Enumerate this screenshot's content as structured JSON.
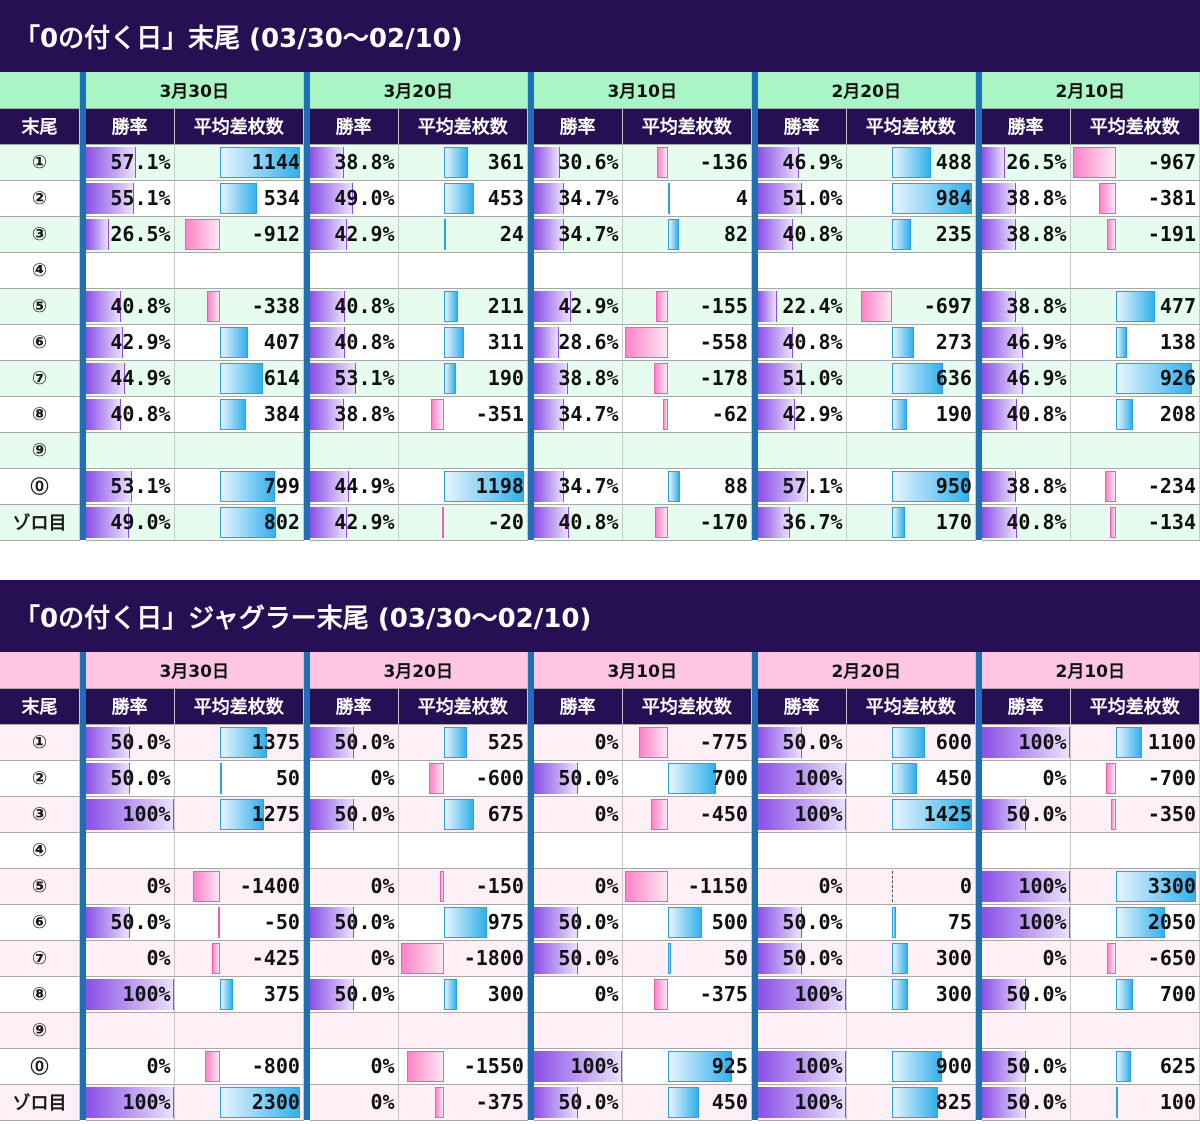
{
  "tables": [
    {
      "title": "「0の付く日」末尾 (03/30〜02/10)",
      "tail_header": "末尾",
      "rate_header": "勝率",
      "diff_header": "平均差枚数",
      "dates": [
        "3月30日",
        "3月20日",
        "3月10日",
        "2月20日",
        "2月10日"
      ],
      "rows": [
        {
          "tail": "①",
          "cells": [
            [
              "57.1%",
              1144
            ],
            [
              "38.8%",
              361
            ],
            [
              "30.6%",
              -136
            ],
            [
              "46.9%",
              488
            ],
            [
              "26.5%",
              -967
            ]
          ]
        },
        {
          "tail": "②",
          "cells": [
            [
              "55.1%",
              534
            ],
            [
              "49.0%",
              453
            ],
            [
              "34.7%",
              4
            ],
            [
              "51.0%",
              984
            ],
            [
              "38.8%",
              -381
            ]
          ]
        },
        {
          "tail": "③",
          "cells": [
            [
              "26.5%",
              -912
            ],
            [
              "42.9%",
              24
            ],
            [
              "34.7%",
              82
            ],
            [
              "40.8%",
              235
            ],
            [
              "38.8%",
              -191
            ]
          ]
        },
        {
          "tail": "④",
          "cells": [
            [
              "",
              null
            ],
            [
              "",
              null
            ],
            [
              "",
              null
            ],
            [
              "",
              null
            ],
            [
              "",
              null
            ]
          ]
        },
        {
          "tail": "⑤",
          "cells": [
            [
              "40.8%",
              -338
            ],
            [
              "40.8%",
              211
            ],
            [
              "42.9%",
              -155
            ],
            [
              "22.4%",
              -697
            ],
            [
              "38.8%",
              477
            ]
          ]
        },
        {
          "tail": "⑥",
          "cells": [
            [
              "42.9%",
              407
            ],
            [
              "40.8%",
              311
            ],
            [
              "28.6%",
              -558
            ],
            [
              "40.8%",
              273
            ],
            [
              "46.9%",
              138
            ]
          ]
        },
        {
          "tail": "⑦",
          "cells": [
            [
              "44.9%",
              614
            ],
            [
              "53.1%",
              190
            ],
            [
              "38.8%",
              -178
            ],
            [
              "51.0%",
              636
            ],
            [
              "46.9%",
              926
            ]
          ]
        },
        {
          "tail": "⑧",
          "cells": [
            [
              "40.8%",
              384
            ],
            [
              "38.8%",
              -351
            ],
            [
              "34.7%",
              -62
            ],
            [
              "42.9%",
              190
            ],
            [
              "40.8%",
              208
            ]
          ]
        },
        {
          "tail": "⑨",
          "cells": [
            [
              "",
              null
            ],
            [
              "",
              null
            ],
            [
              "",
              null
            ],
            [
              "",
              null
            ],
            [
              "",
              null
            ]
          ]
        },
        {
          "tail": "⓪",
          "cells": [
            [
              "53.1%",
              799
            ],
            [
              "44.9%",
              1198
            ],
            [
              "34.7%",
              88
            ],
            [
              "57.1%",
              950
            ],
            [
              "38.8%",
              -234
            ]
          ]
        },
        {
          "tail": "ゾロ目",
          "cells": [
            [
              "49.0%",
              802
            ],
            [
              "42.9%",
              -20
            ],
            [
              "40.8%",
              -170
            ],
            [
              "36.7%",
              170
            ],
            [
              "40.8%",
              -134
            ]
          ]
        }
      ]
    },
    {
      "title": "「0の付く日」ジャグラー末尾 (03/30〜02/10)",
      "tail_header": "末尾",
      "rate_header": "勝率",
      "diff_header": "平均差枚数",
      "dates": [
        "3月30日",
        "3月20日",
        "3月10日",
        "2月20日",
        "2月10日"
      ],
      "rows": [
        {
          "tail": "①",
          "cells": [
            [
              "50.0%",
              1375
            ],
            [
              "50.0%",
              525
            ],
            [
              "0%",
              -775
            ],
            [
              "50.0%",
              600
            ],
            [
              "100%",
              1100
            ]
          ]
        },
        {
          "tail": "②",
          "cells": [
            [
              "50.0%",
              50
            ],
            [
              "0%",
              -600
            ],
            [
              "50.0%",
              700
            ],
            [
              "100%",
              450
            ],
            [
              "0%",
              -700
            ]
          ]
        },
        {
          "tail": "③",
          "cells": [
            [
              "100%",
              1275
            ],
            [
              "50.0%",
              675
            ],
            [
              "0%",
              -450
            ],
            [
              "100%",
              1425
            ],
            [
              "50.0%",
              -350
            ]
          ]
        },
        {
          "tail": "④",
          "cells": [
            [
              "",
              null
            ],
            [
              "",
              null
            ],
            [
              "",
              null
            ],
            [
              "",
              null
            ],
            [
              "",
              null
            ]
          ]
        },
        {
          "tail": "⑤",
          "cells": [
            [
              "0%",
              -1400
            ],
            [
              "0%",
              -150
            ],
            [
              "0%",
              -1150
            ],
            [
              "0%",
              0
            ],
            [
              "100%",
              3300
            ]
          ]
        },
        {
          "tail": "⑥",
          "cells": [
            [
              "50.0%",
              -50
            ],
            [
              "50.0%",
              975
            ],
            [
              "50.0%",
              500
            ],
            [
              "50.0%",
              75
            ],
            [
              "100%",
              2050
            ]
          ]
        },
        {
          "tail": "⑦",
          "cells": [
            [
              "0%",
              -425
            ],
            [
              "0%",
              -1800
            ],
            [
              "50.0%",
              50
            ],
            [
              "50.0%",
              300
            ],
            [
              "0%",
              -650
            ]
          ]
        },
        {
          "tail": "⑧",
          "cells": [
            [
              "100%",
              375
            ],
            [
              "50.0%",
              300
            ],
            [
              "0%",
              -375
            ],
            [
              "100%",
              300
            ],
            [
              "50.0%",
              700
            ]
          ]
        },
        {
          "tail": "⑨",
          "cells": [
            [
              "",
              null
            ],
            [
              "",
              null
            ],
            [
              "",
              null
            ],
            [
              "",
              null
            ],
            [
              "",
              null
            ]
          ]
        },
        {
          "tail": "⓪",
          "cells": [
            [
              "0%",
              -800
            ],
            [
              "0%",
              -1550
            ],
            [
              "100%",
              925
            ],
            [
              "100%",
              900
            ],
            [
              "50.0%",
              625
            ]
          ]
        },
        {
          "tail": "ゾロ目",
          "cells": [
            [
              "100%",
              2300
            ],
            [
              "0%",
              -375
            ],
            [
              "50.0%",
              450
            ],
            [
              "100%",
              825
            ],
            [
              "50.0%",
              100
            ]
          ]
        }
      ]
    }
  ],
  "colors": {
    "title_bg": "#260f52",
    "separator": "#1e6fb5",
    "rate_bar": "#8a4fe6",
    "positive_bar": "#33b0ec",
    "negative_bar": "#ff82c8",
    "table1_accent": "#a9f5c6",
    "table2_accent": "#ffc5e2"
  }
}
